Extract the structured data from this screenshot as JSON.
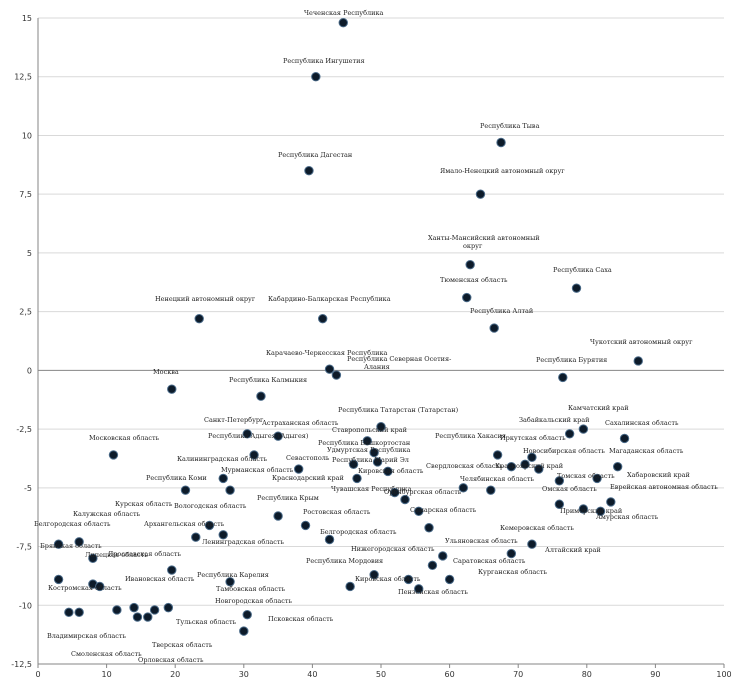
{
  "chart_data": {
    "type": "scatter",
    "title": "",
    "xlabel": "",
    "ylabel": "",
    "xlim": [
      0,
      100
    ],
    "ylim": [
      -12.5,
      15
    ],
    "x_ticks": [
      0,
      10,
      20,
      30,
      40,
      50,
      60,
      70,
      80,
      90,
      100
    ],
    "y_ticks": [
      "-12,5",
      "-10",
      "-7,5",
      "-5",
      "-2,5",
      "0",
      "2,5",
      "5",
      "7,5",
      "10",
      "12,5",
      "15"
    ],
    "y_tick_values": [
      -12.5,
      -10,
      -7.5,
      -5,
      -2.5,
      0,
      2.5,
      5,
      7.5,
      10,
      12.5,
      15
    ],
    "grid": "horizontal",
    "marker_color": "#0d1b2a",
    "points": [
      {
        "label": "Чеченская Республика",
        "x": 44.5,
        "y": 14.8
      },
      {
        "label": "Республика Ингушетия",
        "x": 40.5,
        "y": 12.5
      },
      {
        "label": "Республика Тыва",
        "x": 67.5,
        "y": 9.7
      },
      {
        "label": "Республика Дагестан",
        "x": 39.5,
        "y": 8.5
      },
      {
        "label": "Ямало-Ненецкий автономный округ",
        "x": 64.5,
        "y": 7.5
      },
      {
        "label": "Ханты-Мансийский автономный округ",
        "x": 63,
        "y": 4.5
      },
      {
        "label": "Республика Саха",
        "x": 78.5,
        "y": 3.5
      },
      {
        "label": "Тюменская область",
        "x": 62.5,
        "y": 3.1
      },
      {
        "label": "Ненецкий автономный округ",
        "x": 23.5,
        "y": 2.2
      },
      {
        "label": "Кабардино-Балкарская Республика",
        "x": 41.5,
        "y": 2.2
      },
      {
        "label": "Республика Алтай",
        "x": 66.5,
        "y": 1.8
      },
      {
        "label": "Чукотский автономный округ",
        "x": 87.5,
        "y": 0.4
      },
      {
        "label": "Карачаево-Черкесская Республика",
        "x": 42.5,
        "y": 0.05
      },
      {
        "label": "Республика Северная Осетия-Алания",
        "x": 43.5,
        "y": -0.2
      },
      {
        "label": "Республика Бурятия",
        "x": 76.5,
        "y": -0.3
      },
      {
        "label": "Москва",
        "x": 19.5,
        "y": -0.8
      },
      {
        "label": "Республика Калмыкия",
        "x": 32.5,
        "y": -1.1
      },
      {
        "label": "Республика Татарстан (Татарстан)",
        "x": 50,
        "y": -2.4
      },
      {
        "label": "Камчатский край",
        "x": 79.5,
        "y": -2.5
      },
      {
        "label": "Забайкальский край",
        "x": 77.5,
        "y": -2.7
      },
      {
        "label": "Сахалинская область",
        "x": 85.5,
        "y": -2.9
      },
      {
        "label": "Астраханская область",
        "x": 35,
        "y": -2.8
      },
      {
        "label": "Санкт-Петербург",
        "x": 30.5,
        "y": -2.7
      },
      {
        "label": "Республика Адыгея (Адыгея)",
        "x": 31.5,
        "y": -3.6
      },
      {
        "label": "Ставропольский край",
        "x": 48,
        "y": -3
      },
      {
        "label": "Республика Башкортостан",
        "x": 49,
        "y": -3.5
      },
      {
        "label": "Иркутская область",
        "x": 72,
        "y": -3.7
      },
      {
        "label": "Республика Хакасия",
        "x": 67,
        "y": -3.6
      },
      {
        "label": "Московская область",
        "x": 11,
        "y": -3.6
      },
      {
        "label": "Удмуртская Республика",
        "x": 49.5,
        "y": -3.9
      },
      {
        "label": "Республика Марий Эл",
        "x": 46,
        "y": -4
      },
      {
        "label": "Калининградская область",
        "x": 27,
        "y": -4.6
      },
      {
        "label": "Севастополь",
        "x": 38,
        "y": -4.2
      },
      {
        "label": "Кировская область",
        "x": 51,
        "y": -4.3
      },
      {
        "label": "Свердловская область",
        "x": 62,
        "y": -5
      },
      {
        "label": "Новосибирская область",
        "x": 73,
        "y": -4.2
      },
      {
        "label": "Магаданская область",
        "x": 84.5,
        "y": -4.1
      },
      {
        "label": "Хабаровский край",
        "x": 81.5,
        "y": -4.6
      },
      {
        "label": "Мурманская область",
        "x": 28,
        "y": -5.1
      },
      {
        "label": "Краснодарский край",
        "x": 46.5,
        "y": -4.6
      },
      {
        "label": "Красноярский край",
        "x": 71,
        "y": -4
      },
      {
        "label": "Омская область",
        "x": 69,
        "y": -4.1
      },
      {
        "label": "Челябинская область",
        "x": 66,
        "y": -5.1
      },
      {
        "label": "Томская область",
        "x": 76,
        "y": -4.7
      },
      {
        "label": "Республика Коми",
        "x": 21.5,
        "y": -5.1
      },
      {
        "label": "Чувашская Республика",
        "x": 52,
        "y": -5.2
      },
      {
        "label": "Оренбургская область",
        "x": 53.5,
        "y": -5.5
      },
      {
        "label": "Еврейская автономная область",
        "x": 83.5,
        "y": -5.6
      },
      {
        "label": "Приморский край",
        "x": 79.5,
        "y": -5.9
      },
      {
        "label": "Амурская область",
        "x": 82,
        "y": -6
      },
      {
        "label": "Омская обл.",
        "x": 76,
        "y": -5.7
      },
      {
        "label": "Республика Крым",
        "x": 35,
        "y": -6.2
      },
      {
        "label": "Вологодская область",
        "x": 25,
        "y": -6.6
      },
      {
        "label": "Курская область",
        "x": 23,
        "y": -7.1
      },
      {
        "label": "Ростовская область",
        "x": 39,
        "y": -6.6
      },
      {
        "label": "Архангельская область",
        "x": 27,
        "y": -7
      },
      {
        "label": "Самарская область",
        "x": 55.5,
        "y": -6
      },
      {
        "label": "Белгородская область",
        "x": 42.5,
        "y": -7.2
      },
      {
        "label": "Пермский край",
        "x": 57,
        "y": -6.7
      },
      {
        "label": "Кемеровская область",
        "x": 72,
        "y": -7.4
      },
      {
        "label": "Алтайский край",
        "x": 69,
        "y": -7.8
      },
      {
        "label": "Калужская область",
        "x": 6,
        "y": -7.3
      },
      {
        "label": "Белгородская обл.",
        "x": 3,
        "y": -7.4
      },
      {
        "label": "Липецкая область",
        "x": 8,
        "y": -8
      },
      {
        "label": "Ленинградская область",
        "x": 19.5,
        "y": -8.5
      },
      {
        "label": "Нижегородская область",
        "x": 59,
        "y": -7.9
      },
      {
        "label": "Ульяновская область",
        "x": 57.5,
        "y": -8.3
      },
      {
        "label": "Брянская область",
        "x": 3,
        "y": -8.9
      },
      {
        "label": "Республика Карелия",
        "x": 28,
        "y": -9
      },
      {
        "label": "Ярославская область",
        "x": 8,
        "y": -9.1
      },
      {
        "label": "Курганская область",
        "x": 60,
        "y": -8.9
      },
      {
        "label": "Республика Мордовия",
        "x": 49,
        "y": -8.7
      },
      {
        "label": "Саратовская область",
        "x": 54,
        "y": -8.9
      },
      {
        "label": "Ивановская область",
        "x": 9,
        "y": -9.2
      },
      {
        "label": "Кировская обл.",
        "x": 45.5,
        "y": -9.2
      },
      {
        "label": "Пензенская область",
        "x": 55.5,
        "y": -9.3
      },
      {
        "label": "Костромская область",
        "x": 4.5,
        "y": -10.3
      },
      {
        "label": "Новгородская область",
        "x": 14,
        "y": -10.1
      },
      {
        "label": "Тамбовская область",
        "x": 17,
        "y": -10.2
      },
      {
        "label": "Рязанская область",
        "x": 14.5,
        "y": -10.5
      },
      {
        "label": "Псковская область",
        "x": 30.5,
        "y": -10.4
      },
      {
        "label": "Владимирская область",
        "x": 6,
        "y": -10.3
      },
      {
        "label": "Тульская область",
        "x": 11.5,
        "y": -10.2
      },
      {
        "label": "Смоленская область",
        "x": 16,
        "y": -10.5
      },
      {
        "label": "Тверская область",
        "x": 19,
        "y": -10.1
      },
      {
        "label": "Орловская область",
        "x": 30,
        "y": -11.1
      }
    ]
  },
  "labels": [
    {
      "text": "Чеченская Республика"
    },
    {
      "text": "Республика Ингушетия"
    },
    {
      "text": "Республика Тыва"
    },
    {
      "text": "Республика Дагестан"
    },
    {
      "text": "Ямало-Ненецкий автономный округ"
    },
    {
      "text": "Ханты-Мансийский автономный"
    },
    {
      "text": "округ"
    },
    {
      "text": "Республика Саха"
    },
    {
      "text": "Тюменская область"
    },
    {
      "text": "Ненецкий автономный округ"
    },
    {
      "text": "Кабардино-Балкарская Республика"
    },
    {
      "text": "Республика Алтай"
    },
    {
      "text": "Чукотский автономный округ"
    },
    {
      "text": "Карачаево-Черкесская Республика"
    },
    {
      "text": "Республика Северная Осетия-"
    },
    {
      "text": "Алания"
    },
    {
      "text": "Республика Бурятия"
    },
    {
      "text": "Москва"
    },
    {
      "text": "Республика Калмыкия"
    },
    {
      "text": "Республика Татарстан (Татарстан)"
    },
    {
      "text": "Камчатский край"
    },
    {
      "text": "Забайкальский край"
    },
    {
      "text": "Сахалинская область"
    },
    {
      "text": "Астраханская область"
    },
    {
      "text": "Санкт-Петербург"
    },
    {
      "text": "Республика Адыгея (Адыгея)"
    },
    {
      "text": "Ставропольский край"
    },
    {
      "text": "Республика Башкортостан"
    },
    {
      "text": "Республика Хакасия"
    },
    {
      "text": "Иркутская область"
    },
    {
      "text": "Московская область"
    },
    {
      "text": "Удмуртская Республика"
    },
    {
      "text": "Республика Марий Эл"
    },
    {
      "text": "Калининградская область"
    },
    {
      "text": "Севастополь"
    },
    {
      "text": "Кировская область"
    },
    {
      "text": "Новосибирская область"
    },
    {
      "text": "Магаданская область"
    },
    {
      "text": "Хабаровский край"
    },
    {
      "text": "Мурманская область"
    },
    {
      "text": "Краснодарский край"
    },
    {
      "text": "Свердловская область"
    },
    {
      "text": "Красноярский край"
    },
    {
      "text": "Томская область"
    },
    {
      "text": "Республика Коми"
    },
    {
      "text": "Чувашская Республика"
    },
    {
      "text": "Оренбургская область"
    },
    {
      "text": "Челябинская область"
    },
    {
      "text": "Еврейская автономная область"
    },
    {
      "text": "Омская область"
    },
    {
      "text": "Приморский край"
    },
    {
      "text": "Амурская область"
    },
    {
      "text": "Республика Крым"
    },
    {
      "text": "Курская область"
    },
    {
      "text": "Вологодская область"
    },
    {
      "text": "Ростовская область"
    },
    {
      "text": "Архангельская область"
    },
    {
      "text": "Самарская область"
    },
    {
      "text": "Калужская область"
    },
    {
      "text": "Белгородская область"
    },
    {
      "text": "Ленинградская область"
    },
    {
      "text": "Белгородская область"
    },
    {
      "text": "Кемеровская область"
    },
    {
      "text": "Алтайский край"
    },
    {
      "text": "Брянская область"
    },
    {
      "text": "Липецкая область"
    },
    {
      "text": "Нижегородская область"
    },
    {
      "text": "Ульяновская область"
    },
    {
      "text": "Ярославская область"
    },
    {
      "text": "Республика Карелия"
    },
    {
      "text": "Республика Мордовия"
    },
    {
      "text": "Саратовская область"
    },
    {
      "text": "Курганская область"
    },
    {
      "text": "Костромская область"
    },
    {
      "text": "Ивановская область"
    },
    {
      "text": "Тамбовская область"
    },
    {
      "text": "Кировская область"
    },
    {
      "text": "Новгородская область"
    },
    {
      "text": "Пензенская область"
    },
    {
      "text": "Псковская область"
    },
    {
      "text": "Тульская область"
    },
    {
      "text": "Владимирская область"
    },
    {
      "text": "Тверская область"
    },
    {
      "text": "Смоленская область"
    },
    {
      "text": "Орловская область"
    }
  ]
}
